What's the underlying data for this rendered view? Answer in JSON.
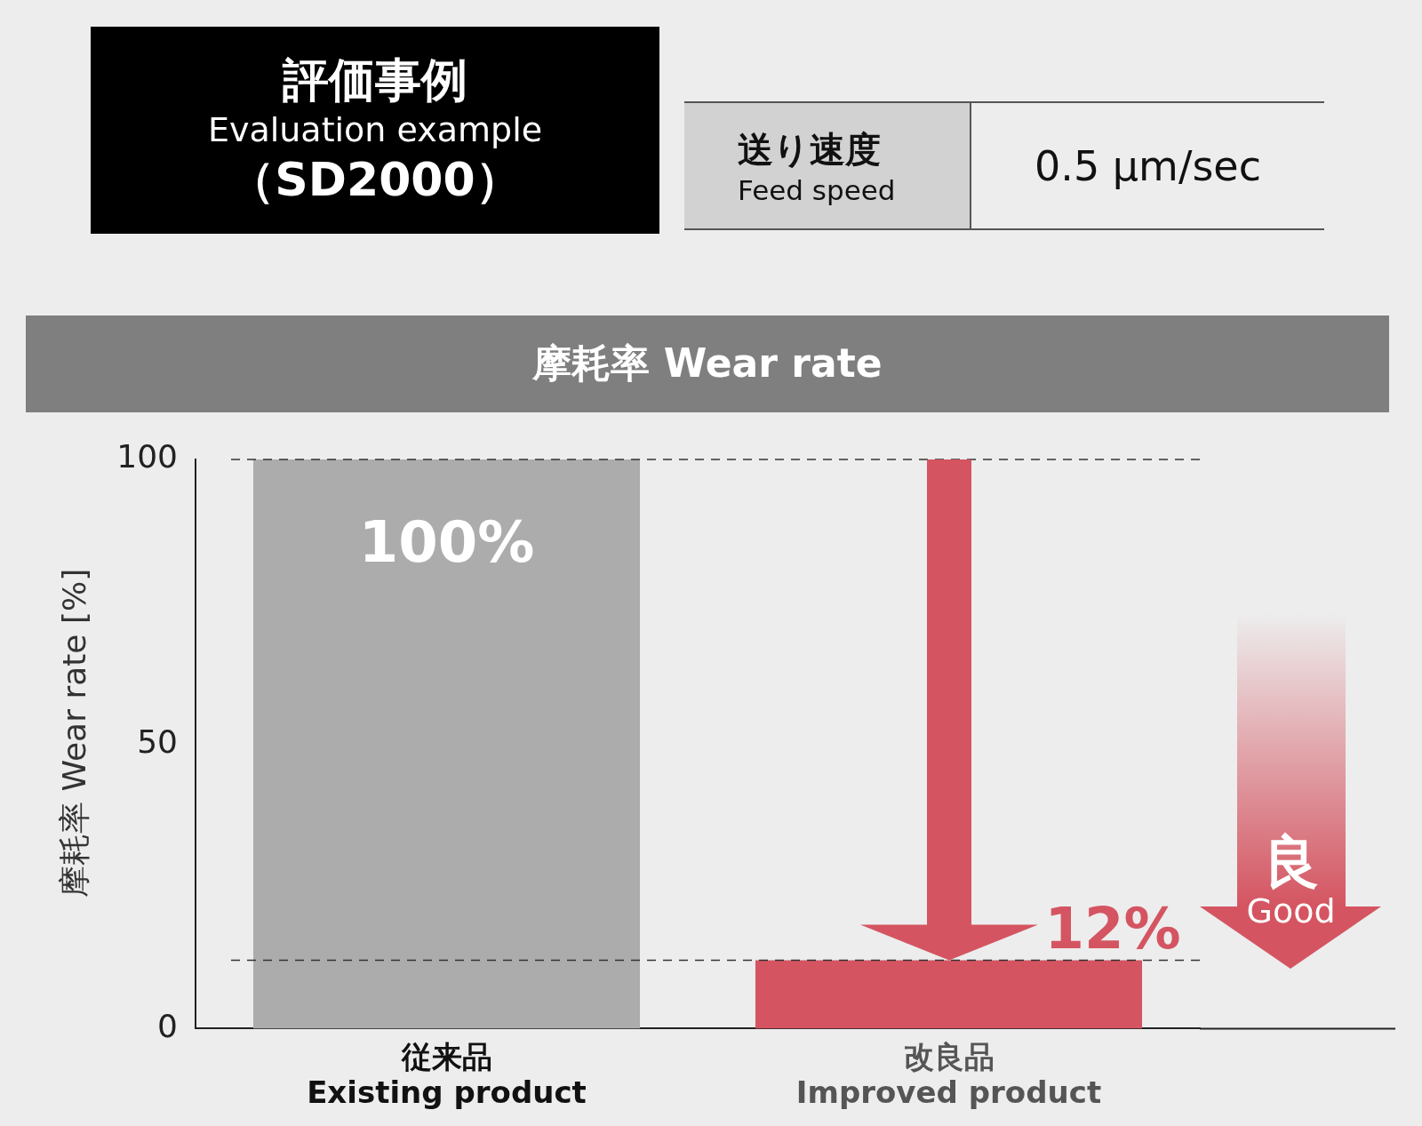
{
  "chart_data": {
    "type": "bar",
    "title": "摩耗率 Wear rate",
    "ylabel": "摩耗率 Wear rate [%]",
    "categories": [
      "従来品\nExisting product",
      "改良品\nImproved product"
    ],
    "values": [
      100,
      12
    ],
    "colors": [
      "#acacac",
      "#d45561"
    ],
    "value_labels": [
      "100%",
      "12%"
    ],
    "ylim": [
      0,
      100
    ],
    "yticks": [
      0,
      50,
      100
    ],
    "grid": false,
    "legend": false,
    "ref_lines": [
      {
        "axis": "y",
        "value": 100,
        "line_style": "dashed",
        "color": "#333333"
      },
      {
        "axis": "y",
        "value": 12,
        "line_style": "dashed",
        "color": "#333333"
      }
    ],
    "annotations": [
      "評価事例",
      "Evaluation example",
      "（SD2000）",
      "送り速度",
      "Feed speed",
      "0.5 μm/sec",
      "良",
      "Good"
    ]
  }
}
